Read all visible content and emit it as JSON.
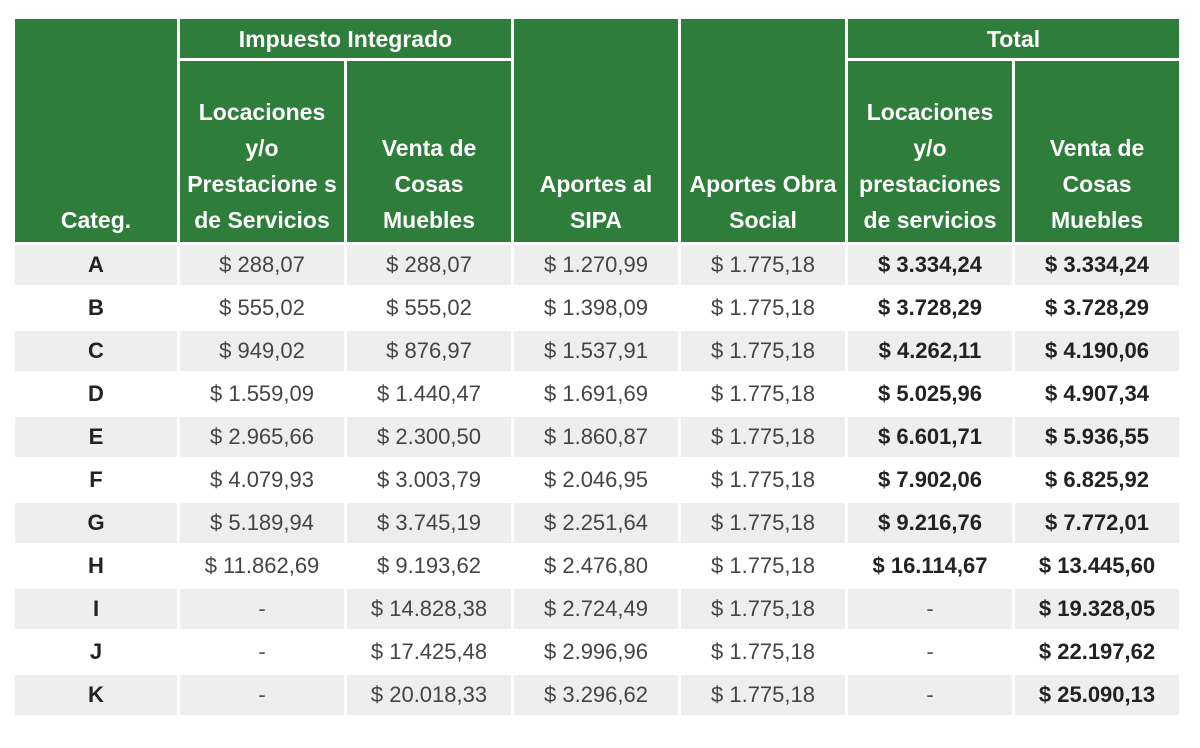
{
  "headers": {
    "categ": "Categ.",
    "impuesto_integrado": "Impuesto Integrado",
    "total": "Total",
    "ii_locaciones": "Locaciones y/o Prestacione s de Servicios",
    "ii_venta": "Venta de Cosas Muebles",
    "aportes_sipa": "Aportes al SIPA",
    "aportes_obra_social": "Aportes Obra Social",
    "total_locaciones": "Locaciones y/o prestaciones de servicios",
    "total_venta": "Venta de Cosas Muebles"
  },
  "rows": [
    {
      "cat": "A",
      "ii_loc": "$ 288,07",
      "ii_venta": "$ 288,07",
      "sipa": "$ 1.270,99",
      "obra": "$ 1.775,18",
      "tot_loc": "$ 3.334,24",
      "tot_venta": "$ 3.334,24"
    },
    {
      "cat": "B",
      "ii_loc": "$ 555,02",
      "ii_venta": "$ 555,02",
      "sipa": "$ 1.398,09",
      "obra": "$ 1.775,18",
      "tot_loc": "$ 3.728,29",
      "tot_venta": "$ 3.728,29"
    },
    {
      "cat": "C",
      "ii_loc": "$ 949,02",
      "ii_venta": "$ 876,97",
      "sipa": "$ 1.537,91",
      "obra": "$ 1.775,18",
      "tot_loc": "$ 4.262,11",
      "tot_venta": "$ 4.190,06"
    },
    {
      "cat": "D",
      "ii_loc": "$ 1.559,09",
      "ii_venta": "$ 1.440,47",
      "sipa": "$ 1.691,69",
      "obra": "$ 1.775,18",
      "tot_loc": "$ 5.025,96",
      "tot_venta": "$ 4.907,34"
    },
    {
      "cat": "E",
      "ii_loc": "$ 2.965,66",
      "ii_venta": "$ 2.300,50",
      "sipa": "$ 1.860,87",
      "obra": "$ 1.775,18",
      "tot_loc": "$ 6.601,71",
      "tot_venta": "$ 5.936,55"
    },
    {
      "cat": "F",
      "ii_loc": "$ 4.079,93",
      "ii_venta": "$ 3.003,79",
      "sipa": "$ 2.046,95",
      "obra": "$ 1.775,18",
      "tot_loc": "$ 7.902,06",
      "tot_venta": "$ 6.825,92"
    },
    {
      "cat": "G",
      "ii_loc": "$ 5.189,94",
      "ii_venta": "$ 3.745,19",
      "sipa": "$ 2.251,64",
      "obra": "$ 1.775,18",
      "tot_loc": "$ 9.216,76",
      "tot_venta": "$ 7.772,01"
    },
    {
      "cat": "H",
      "ii_loc": "$ 11.862,69",
      "ii_venta": "$ 9.193,62",
      "sipa": "$ 2.476,80",
      "obra": "$ 1.775,18",
      "tot_loc": "$ 16.114,67",
      "tot_venta": "$ 13.445,60"
    },
    {
      "cat": "I",
      "ii_loc": "-",
      "ii_venta": "$ 14.828,38",
      "sipa": "$ 2.724,49",
      "obra": "$ 1.775,18",
      "tot_loc": "-",
      "tot_venta": "$ 19.328,05"
    },
    {
      "cat": "J",
      "ii_loc": "-",
      "ii_venta": "$ 17.425,48",
      "sipa": "$ 2.996,96",
      "obra": "$ 1.775,18",
      "tot_loc": "-",
      "tot_venta": "$ 22.197,62"
    },
    {
      "cat": "K",
      "ii_loc": "-",
      "ii_venta": "$ 20.018,33",
      "sipa": "$ 3.296,62",
      "obra": "$ 1.775,18",
      "tot_loc": "-",
      "tot_venta": "$ 25.090,13"
    }
  ]
}
